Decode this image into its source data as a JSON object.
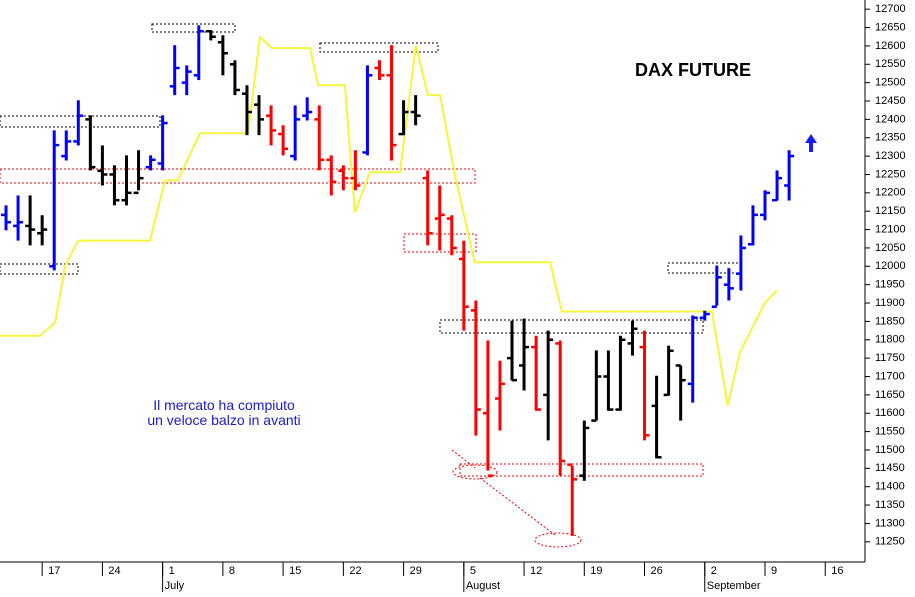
{
  "chart_data": {
    "type": "ohlc",
    "title": "DAX FUTURE",
    "annotation": [
      "Il mercato ha compiuto",
      "un veloce balzo in avanti"
    ],
    "x": [
      0,
      1,
      2,
      3,
      4,
      5,
      6,
      7,
      8,
      9,
      10,
      11,
      12,
      13,
      14,
      15,
      16,
      17,
      18,
      19,
      20,
      21,
      22,
      23,
      24,
      25,
      26,
      27,
      28,
      29,
      30,
      31,
      32,
      33,
      34,
      35,
      36,
      37,
      38,
      39,
      40,
      41,
      42,
      43,
      44,
      45,
      46,
      47,
      48,
      49,
      50,
      51,
      52,
      53,
      54,
      55,
      56,
      57,
      58,
      59,
      60,
      61,
      62,
      63,
      64,
      65
    ],
    "open": [
      12140,
      12110,
      12110,
      12090,
      12000,
      12300,
      12340,
      12400,
      12260,
      12250,
      12180,
      12200,
      12270,
      12280,
      12490,
      12500,
      12520,
      12640,
      12610,
      12550,
      12470,
      12440,
      12410,
      12360,
      12300,
      12410,
      12400,
      12290,
      12260,
      12240,
      12310,
      12540,
      12520,
      12360,
      12420,
      12240,
      12130,
      12130,
      12020,
      11880,
      11600,
      11640,
      11750,
      11730,
      11780,
      11650,
      11790,
      11460,
      11430,
      11580,
      11700,
      11610,
      11790,
      11780,
      11620,
      11650,
      11730,
      11680,
      11860,
      11890,
      11950,
      11980,
      12060,
      12140,
      12180,
      12220
    ],
    "high": [
      12166,
      12193,
      12193,
      12139,
      12370,
      12370,
      12452,
      12411,
      12329,
      12275,
      12302,
      12316,
      12302,
      12411,
      12602,
      12547,
      12656,
      12643,
      12629,
      12561,
      12493,
      12466,
      12438,
      12384,
      12438,
      12460,
      12438,
      12302,
      12275,
      12316,
      12547,
      12561,
      12602,
      12452,
      12466,
      12261,
      12220,
      12139,
      12070,
      11907,
      11798,
      11743,
      11852,
      11858,
      11811,
      11825,
      11798,
      11457,
      11580,
      11771,
      11771,
      11811,
      11852,
      11825,
      11702,
      11784,
      11730,
      11866,
      11879,
      12002,
      11995,
      12084,
      12166,
      12207,
      12261,
      12316
    ],
    "low": [
      12098,
      12070,
      12057,
      12057,
      11989,
      12288,
      12329,
      12261,
      12220,
      12166,
      12166,
      12207,
      12261,
      12261,
      12466,
      12466,
      12507,
      12615,
      12520,
      12466,
      12357,
      12357,
      12329,
      12302,
      12288,
      12397,
      12261,
      12193,
      12207,
      12207,
      12302,
      12507,
      12288,
      12357,
      12384,
      12057,
      12043,
      12030,
      11825,
      11539,
      11444,
      11553,
      11689,
      11662,
      11607,
      11526,
      11430,
      11266,
      11416,
      11580,
      11607,
      11607,
      11757,
      11526,
      11477,
      11648,
      11580,
      11629,
      11852,
      11893,
      11907,
      11934,
      12057,
      12125,
      12179,
      12179
    ],
    "close": [
      12120,
      12120,
      12100,
      12100,
      12330,
      12340,
      12410,
      12270,
      12250,
      12180,
      12200,
      12240,
      12290,
      12390,
      12540,
      12530,
      12640,
      12625,
      12580,
      12480,
      12420,
      12400,
      12370,
      12320,
      12400,
      12420,
      12290,
      12230,
      12240,
      12220,
      12520,
      12520,
      12330,
      12420,
      12410,
      12090,
      12140,
      12050,
      11890,
      11610,
      11430,
      11680,
      11690,
      11780,
      11610,
      11800,
      11470,
      11420,
      11560,
      11700,
      11610,
      11800,
      11830,
      11540,
      11480,
      11770,
      11690,
      11860,
      11870,
      11970,
      11940,
      12050,
      12140,
      12200,
      12240,
      12300
    ],
    "colors": [
      "#0000ff",
      "#0000ff",
      "#000000",
      "#000000",
      "#0000ff",
      "#0000ff",
      "#0000ff",
      "#000000",
      "#000000",
      "#000000",
      "#000000",
      "#000000",
      "#0000ff",
      "#0000ff",
      "#0000ff",
      "#0000ff",
      "#0000ff",
      "#000000",
      "#000000",
      "#000000",
      "#000000",
      "#000000",
      "#ff0000",
      "#ff0000",
      "#0000ff",
      "#0000ff",
      "#ff0000",
      "#ff0000",
      "#ff0000",
      "#ff0000",
      "#0000ff",
      "#ff0000",
      "#ff0000",
      "#000000",
      "#000000",
      "#ff0000",
      "#ff0000",
      "#ff0000",
      "#ff0000",
      "#ff0000",
      "#ff0000",
      "#ff0000",
      "#000000",
      "#000000",
      "#ff0000",
      "#000000",
      "#ff0000",
      "#ff0000",
      "#000000",
      "#000000",
      "#000000",
      "#000000",
      "#000000",
      "#ff0000",
      "#000000",
      "#000000",
      "#000000",
      "#0000ff",
      "#0000ff",
      "#0000ff",
      "#0000ff",
      "#0000ff",
      "#0000ff",
      "#0000ff",
      "#0000ff",
      "#0000ff"
    ],
    "xlim": [
      -0.5,
      71.3
    ],
    "xticks": [
      {
        "value": 3,
        "label": "17"
      },
      {
        "value": 8,
        "label": "24"
      },
      {
        "value": 13,
        "label": "1"
      },
      {
        "value": 18,
        "label": "8"
      },
      {
        "value": 23,
        "label": "15"
      },
      {
        "value": 28,
        "label": "22"
      },
      {
        "value": 33,
        "label": "29"
      },
      {
        "value": 38,
        "label": "5"
      },
      {
        "value": 43,
        "label": "12"
      },
      {
        "value": 48,
        "label": "19"
      },
      {
        "value": 53,
        "label": "26"
      },
      {
        "value": 58,
        "label": "2"
      },
      {
        "value": 63,
        "label": "9"
      },
      {
        "value": 68,
        "label": "16"
      }
    ],
    "month_labels": [
      {
        "value": 13,
        "label": "July"
      },
      {
        "value": 38,
        "label": "August"
      },
      {
        "value": 58,
        "label": "September"
      }
    ],
    "ylim": [
      11195,
      12725
    ],
    "yticks": [
      11250,
      11300,
      11350,
      11400,
      11450,
      11500,
      11550,
      11600,
      11650,
      11700,
      11750,
      11800,
      11850,
      11900,
      11950,
      12000,
      12050,
      12100,
      12150,
      12200,
      12250,
      12300,
      12350,
      12400,
      12450,
      12500,
      12550,
      12600,
      12650,
      12700
    ],
    "line": {
      "color": "#f5f53c",
      "x": [
        -0.5,
        2.82,
        4.07,
        4.9,
        5.98,
        11.95,
        13.2,
        14.27,
        16.1,
        20.08,
        21.08,
        22.07,
        25.23,
        25.9,
        28.13,
        28.96,
        30.2,
        32.7,
        34.02,
        35.02,
        36.02,
        37.26,
        38.9,
        45.15,
        46.14,
        58.59,
        59.9,
        60.91,
        62.99,
        64.0
      ],
      "values": [
        11811,
        11811,
        11847,
        12002,
        12070,
        12070,
        12234,
        12234,
        12362,
        12362,
        12624,
        12594,
        12594,
        12493,
        12493,
        12147,
        12256,
        12256,
        12602,
        12466,
        12466,
        12248,
        12011,
        12011,
        11877,
        11877,
        11621,
        11765,
        11901,
        11934
      ]
    }
  }
}
